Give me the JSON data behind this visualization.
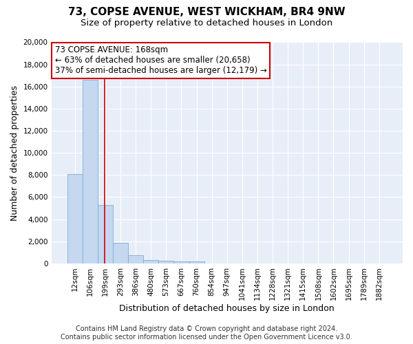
{
  "title_line1": "73, COPSE AVENUE, WEST WICKHAM, BR4 9NW",
  "title_line2": "Size of property relative to detached houses in London",
  "xlabel": "Distribution of detached houses by size in London",
  "ylabel": "Number of detached properties",
  "bar_color": "#c5d8f0",
  "bar_edge_color": "#7aadd4",
  "background_color": "#e8eef8",
  "grid_color": "#ffffff",
  "categories": [
    "12sqm",
    "106sqm",
    "199sqm",
    "293sqm",
    "386sqm",
    "480sqm",
    "573sqm",
    "667sqm",
    "760sqm",
    "854sqm",
    "947sqm",
    "1041sqm",
    "1134sqm",
    "1228sqm",
    "1321sqm",
    "1415sqm",
    "1508sqm",
    "1602sqm",
    "1695sqm",
    "1789sqm",
    "1882sqm"
  ],
  "values": [
    8100,
    16600,
    5300,
    1850,
    750,
    320,
    230,
    175,
    150,
    0,
    0,
    0,
    0,
    0,
    0,
    0,
    0,
    0,
    0,
    0,
    0
  ],
  "ylim": [
    0,
    20000
  ],
  "yticks": [
    0,
    2000,
    4000,
    6000,
    8000,
    10000,
    12000,
    14000,
    16000,
    18000,
    20000
  ],
  "vline_x": 1.97,
  "vline_color": "#cc0000",
  "annotation_line1": "73 COPSE AVENUE: 168sqm",
  "annotation_line2": "← 63% of detached houses are smaller (20,658)",
  "annotation_line3": "37% of semi-detached houses are larger (12,179) →",
  "annotation_box_color": "#ffffff",
  "annotation_box_edge": "#cc0000",
  "footer_line1": "Contains HM Land Registry data © Crown copyright and database right 2024.",
  "footer_line2": "Contains public sector information licensed under the Open Government Licence v3.0.",
  "title_fontsize": 11,
  "subtitle_fontsize": 9.5,
  "tick_fontsize": 7.5,
  "ylabel_fontsize": 9,
  "xlabel_fontsize": 9,
  "annotation_fontsize": 8.5,
  "footer_fontsize": 7
}
